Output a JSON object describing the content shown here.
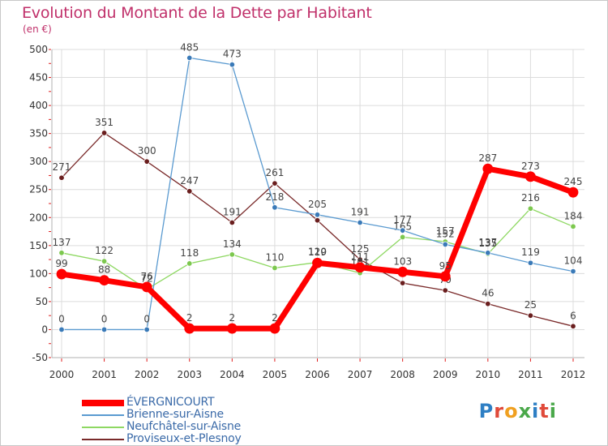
{
  "title": "Evolution du Montant de la Dette par Habitant",
  "subtitle": "(en €)",
  "logo": {
    "text": "Proxiti",
    "colors": [
      "#2e7fc4",
      "#e04a3a",
      "#f0a020",
      "#4aa84a",
      "#2e7fc4",
      "#e04a3a",
      "#4aa84a"
    ]
  },
  "chart_data": {
    "type": "line",
    "title": "Evolution du Montant de la Dette par Habitant",
    "ylabel": "(en €)",
    "xlabel": "",
    "x": [
      "2000",
      "2001",
      "2002",
      "2003",
      "2004",
      "2005",
      "2006",
      "2007",
      "2008",
      "2009",
      "2010",
      "2011",
      "2012"
    ],
    "ylim": [
      -50,
      500
    ],
    "yticks": [
      -50,
      0,
      50,
      100,
      150,
      200,
      250,
      300,
      350,
      400,
      450,
      500
    ],
    "grid": true,
    "legend_position": "bottom-left",
    "series": [
      {
        "name": "Proviseux-et-Plesnoy",
        "color": "#7a2a2a",
        "values": [
          271,
          351,
          300,
          247,
          191,
          261,
          195,
          125,
          83,
          70,
          46,
          25,
          6
        ],
        "labels": [
          "271",
          "351",
          "300",
          "247",
          "191",
          "261",
          "",
          "125",
          "",
          "70",
          "46",
          "25",
          "6"
        ]
      },
      {
        "name": "Neufchâtel-sur-Aisne",
        "color": "#8ed862",
        "values": [
          137,
          122,
          72,
          118,
          134,
          110,
          120,
          101,
          165,
          157,
          135,
          216,
          184
        ],
        "labels": [
          "137",
          "122",
          "72",
          "118",
          "134",
          "110",
          "120",
          "101",
          "165",
          "157",
          "135",
          "216",
          "184"
        ]
      },
      {
        "name": "Brienne-sur-Aisne",
        "color": "#5a9ad0",
        "values": [
          0,
          0,
          0,
          485,
          473,
          218,
          205,
          191,
          177,
          152,
          137,
          119,
          104
        ],
        "labels": [
          "0",
          "0",
          "0",
          "485",
          "473",
          "218",
          "205",
          "191",
          "177",
          "152",
          "137",
          "119",
          "104"
        ]
      },
      {
        "name": "ÉVERGNICOURT",
        "color": "#ff0000",
        "values": [
          99,
          88,
          76,
          2,
          2,
          2,
          119,
          111,
          103,
          95,
          287,
          273,
          245
        ],
        "labels": [
          "99",
          "88",
          "76",
          "2",
          "2",
          "2",
          "119",
          "111",
          "103",
          "95",
          "287",
          "273",
          "245"
        ]
      }
    ],
    "legend": [
      "ÉVERGNICOURT",
      "Brienne-sur-Aisne",
      "Neufchâtel-sur-Aisne",
      "Proviseux-et-Plesnoy"
    ]
  }
}
